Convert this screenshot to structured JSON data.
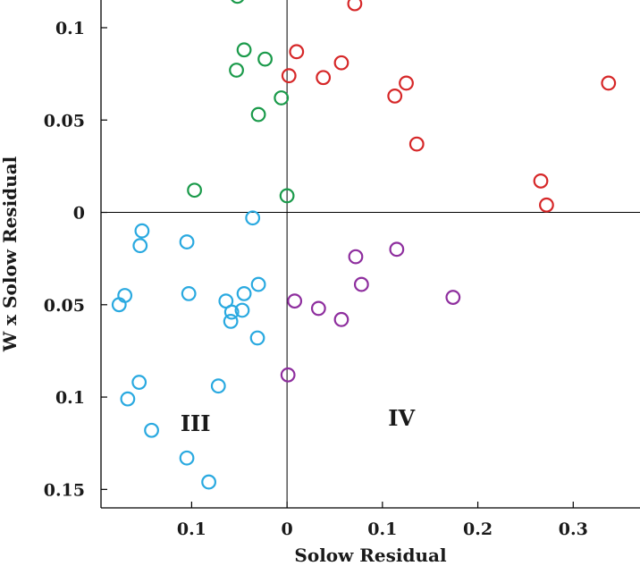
{
  "chart_data": {
    "type": "scatter",
    "title": "",
    "xlabel": "Solow Residual",
    "ylabel": "W x Solow Residual",
    "xlim": [
      -0.195,
      0.37
    ],
    "ylim": [
      -0.16,
      0.115
    ],
    "x_ticks": [
      {
        "value": -0.1,
        "label": "0.1"
      },
      {
        "value": 0,
        "label": "0"
      },
      {
        "value": 0.1,
        "label": "0.1"
      },
      {
        "value": 0.2,
        "label": "0.2"
      },
      {
        "value": 0.3,
        "label": "0.3"
      }
    ],
    "y_ticks": [
      {
        "value": 0.1,
        "label": "0.1"
      },
      {
        "value": 0.05,
        "label": "0.05"
      },
      {
        "value": 0,
        "label": "0"
      },
      {
        "value": -0.05,
        "label": "0.05"
      },
      {
        "value": -0.1,
        "label": "0.1"
      },
      {
        "value": -0.15,
        "label": "0.15"
      }
    ],
    "reference_lines": {
      "x": 0,
      "y": 0
    },
    "quadrant_labels": [
      {
        "text": "III",
        "x": -0.096,
        "y": -0.114
      },
      {
        "text": "IV",
        "x": 0.12,
        "y": -0.111
      }
    ],
    "series": [
      {
        "color": "#d62728",
        "points": [
          [
            0.071,
            0.113
          ],
          [
            0.01,
            0.087
          ],
          [
            0.002,
            0.074
          ],
          [
            0.038,
            0.073
          ],
          [
            0.057,
            0.081
          ],
          [
            0.113,
            0.063
          ],
          [
            0.125,
            0.07
          ],
          [
            0.136,
            0.037
          ],
          [
            0.337,
            0.07
          ],
          [
            0.266,
            0.017
          ],
          [
            0.272,
            0.004
          ]
        ]
      },
      {
        "color": "#1a9a4a",
        "points": [
          [
            -0.052,
            0.117
          ],
          [
            -0.045,
            0.088
          ],
          [
            -0.053,
            0.077
          ],
          [
            -0.023,
            0.083
          ],
          [
            -0.006,
            0.062
          ],
          [
            -0.03,
            0.053
          ],
          [
            -0.097,
            0.012
          ],
          [
            0.0,
            0.009
          ]
        ]
      },
      {
        "color": "#29a9e0",
        "points": [
          [
            -0.152,
            -0.01
          ],
          [
            -0.154,
            -0.018
          ],
          [
            -0.105,
            -0.016
          ],
          [
            -0.036,
            -0.003
          ],
          [
            -0.17,
            -0.045
          ],
          [
            -0.176,
            -0.05
          ],
          [
            -0.103,
            -0.044
          ],
          [
            -0.064,
            -0.048
          ],
          [
            -0.045,
            -0.044
          ],
          [
            -0.03,
            -0.039
          ],
          [
            -0.058,
            -0.054
          ],
          [
            -0.047,
            -0.053
          ],
          [
            -0.059,
            -0.059
          ],
          [
            -0.031,
            -0.068
          ],
          [
            -0.155,
            -0.092
          ],
          [
            -0.167,
            -0.101
          ],
          [
            -0.072,
            -0.094
          ],
          [
            -0.142,
            -0.118
          ],
          [
            -0.105,
            -0.133
          ],
          [
            -0.082,
            -0.146
          ]
        ]
      },
      {
        "color": "#8e2e9e",
        "points": [
          [
            0.072,
            -0.024
          ],
          [
            0.115,
            -0.02
          ],
          [
            0.078,
            -0.039
          ],
          [
            0.174,
            -0.046
          ],
          [
            0.008,
            -0.048
          ],
          [
            0.033,
            -0.052
          ],
          [
            0.057,
            -0.058
          ],
          [
            0.001,
            -0.088
          ]
        ]
      }
    ]
  }
}
